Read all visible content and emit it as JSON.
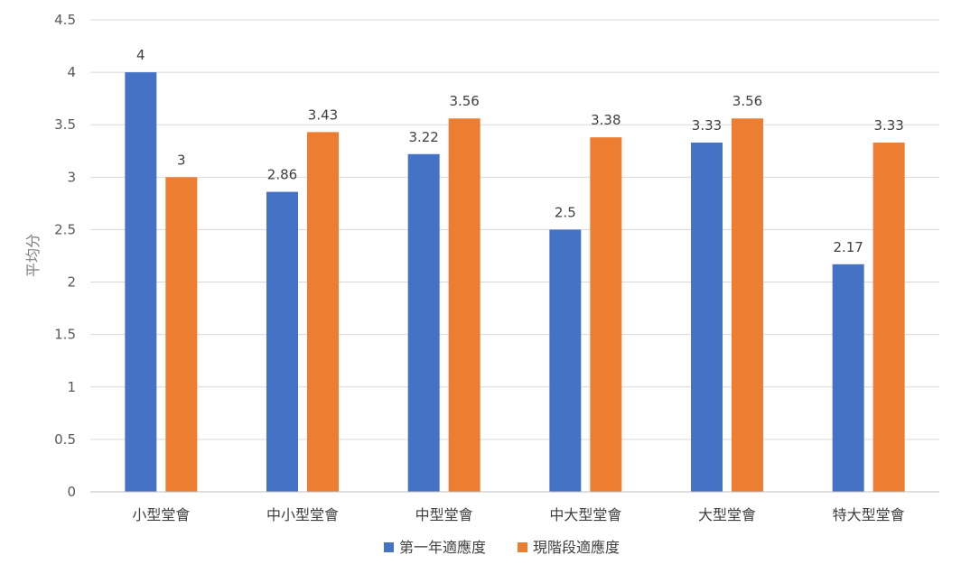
{
  "chart_data": {
    "type": "bar",
    "title": "",
    "xlabel": "",
    "ylabel": "平均分",
    "ylim": [
      0,
      4.5
    ],
    "ytick_step": 0.5,
    "yticks": [
      "0",
      "0.5",
      "1",
      "1.5",
      "2",
      "2.5",
      "3",
      "3.5",
      "4",
      "4.5"
    ],
    "grid": true,
    "legend_position": "bottom",
    "categories": [
      "小型堂會",
      "中小型堂會",
      "中型堂會",
      "中大型堂會",
      "大型堂會",
      "特大型堂會"
    ],
    "series": [
      {
        "name": "第一年適應度",
        "color": "#4472C4",
        "values": [
          4,
          2.86,
          3.22,
          2.5,
          3.33,
          2.17
        ],
        "labels": [
          "4",
          "2.86",
          "3.22",
          "2.5",
          "3.33",
          "2.17"
        ]
      },
      {
        "name": "現階段適應度",
        "color": "#ED7D31",
        "values": [
          3,
          3.43,
          3.56,
          3.38,
          3.56,
          3.33
        ],
        "labels": [
          "3",
          "3.43",
          "3.56",
          "3.38",
          "3.56",
          "3.33"
        ]
      }
    ],
    "gridline_color": "#D9D9D9"
  }
}
